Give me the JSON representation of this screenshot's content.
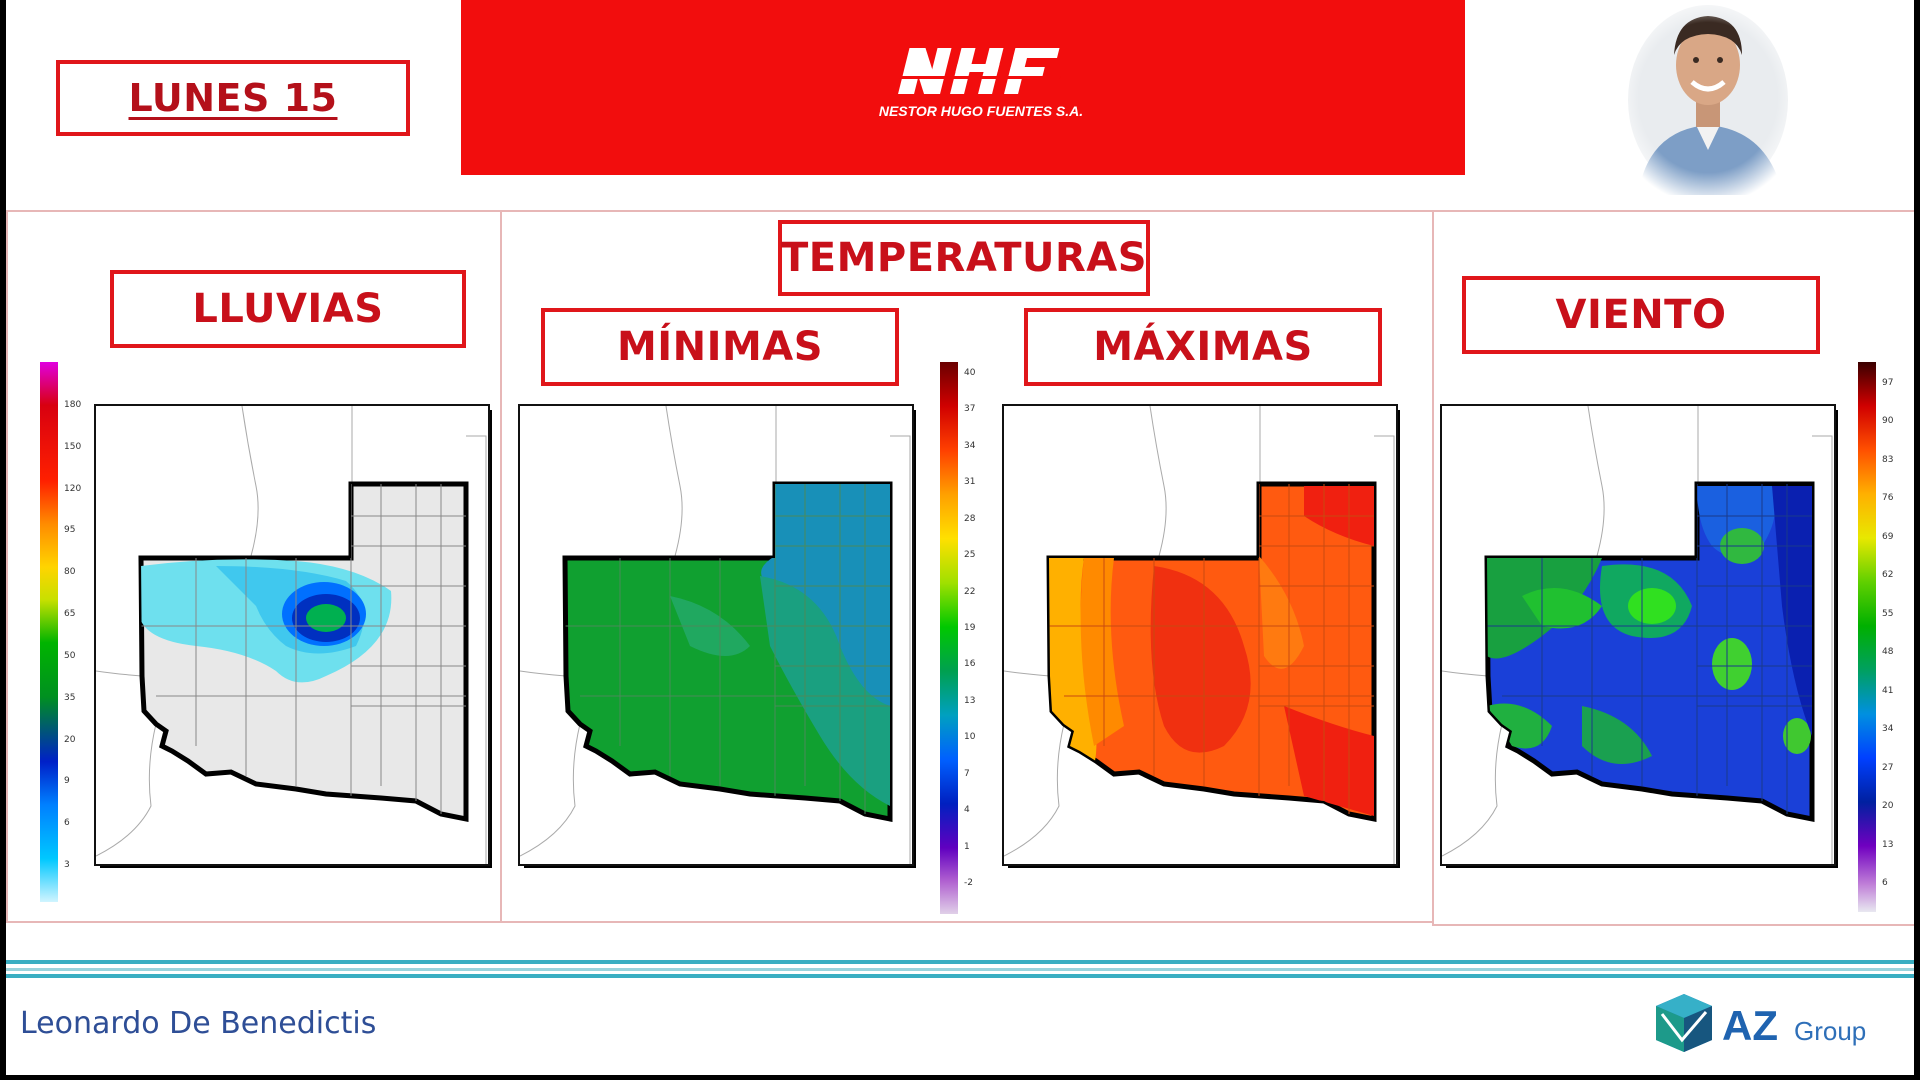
{
  "header": {
    "day_label": "LUNES 15",
    "logo_text": "NHF",
    "logo_subtext": "NESTOR HUGO FUENTES S.A.",
    "banner_color": "#f20d0d"
  },
  "sections": {
    "lluvias": "LLUVIAS",
    "temperaturas": "TEMPERATURAS",
    "minimas": "MÍNIMAS",
    "maximas": "MÁXIMAS",
    "viento": "VIENTO"
  },
  "scales": {
    "lluvias": [
      "180",
      "150",
      "120",
      "95",
      "80",
      "65",
      "50",
      "35",
      "20",
      "9",
      "6",
      "3"
    ],
    "temperaturas": [
      "40",
      "37",
      "34",
      "31",
      "28",
      "25",
      "22",
      "19",
      "16",
      "13",
      "10",
      "7",
      "4",
      "1",
      "-2"
    ],
    "viento": [
      "97",
      "90",
      "83",
      "76",
      "69",
      "62",
      "55",
      "48",
      "41",
      "34",
      "27",
      "20",
      "13",
      "6"
    ]
  },
  "footer": {
    "presenter": "Leonardo De Benedictis",
    "brand": "AZ",
    "brand_suffix": "Group"
  },
  "colors": {
    "accent_red": "#e0161a",
    "presenter_blue": "#2e4e96",
    "az_blue": "#1f63b0",
    "az_teal": "#2aa7a0"
  },
  "icons": [
    "presenter-photo",
    "nhf-logo",
    "az-group-cube-icon"
  ]
}
